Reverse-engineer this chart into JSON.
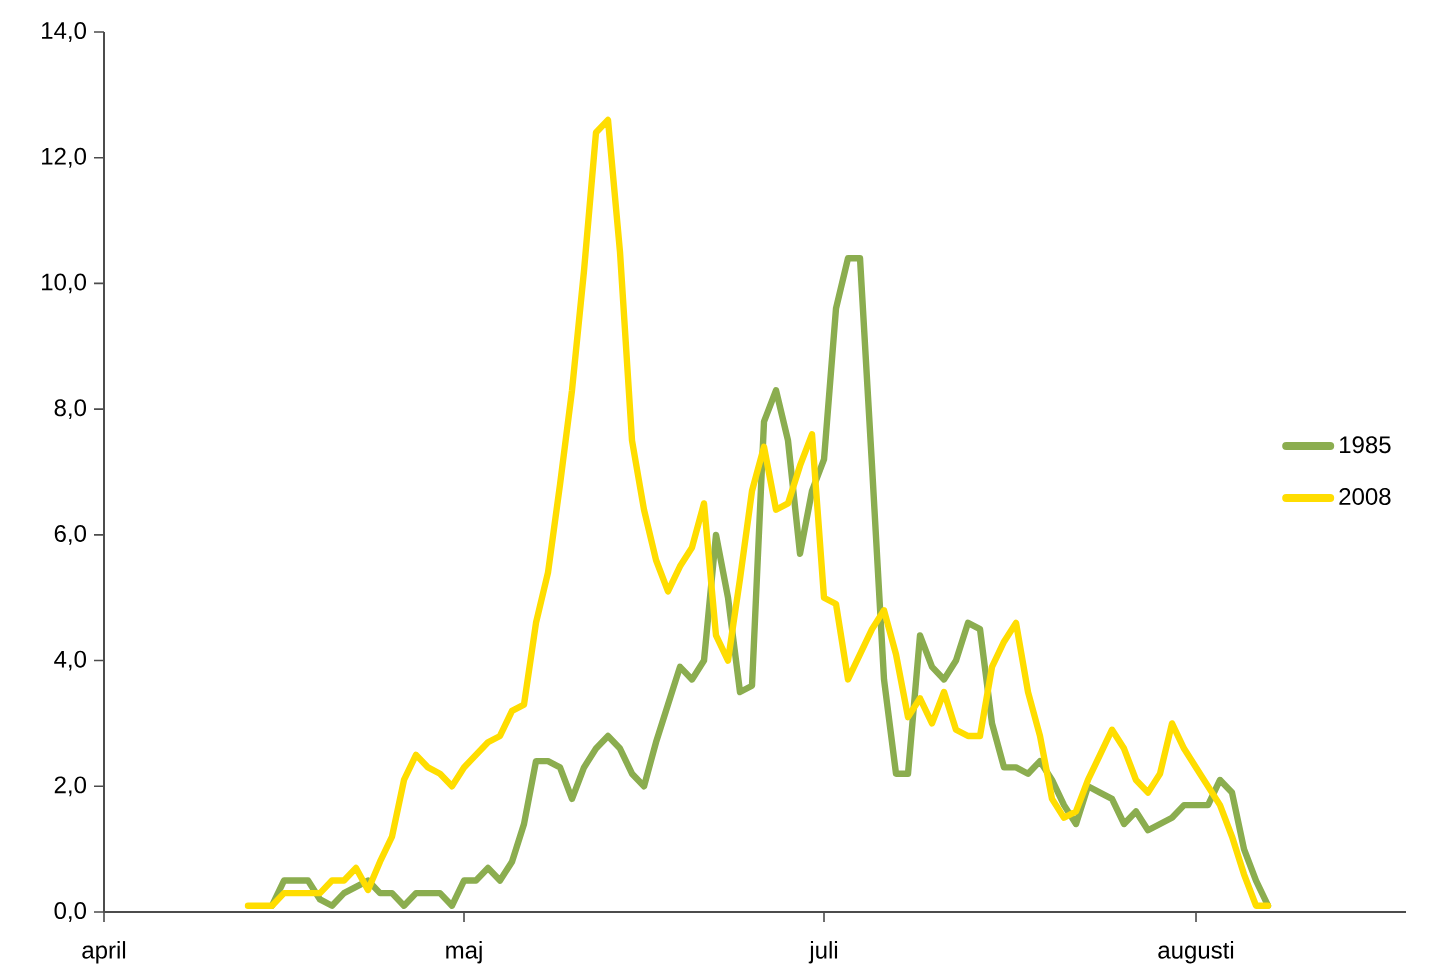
{
  "chart_data": {
    "type": "line",
    "categories": [
      "april",
      null,
      null,
      null,
      null,
      null,
      null,
      null,
      null,
      null,
      null,
      null,
      null,
      null,
      null,
      null,
      null,
      null,
      null,
      null,
      null,
      null,
      null,
      null,
      null,
      null,
      null,
      null,
      null,
      null,
      "maj",
      null,
      null,
      null,
      null,
      null,
      null,
      null,
      null,
      null,
      null,
      null,
      null,
      null,
      null,
      null,
      null,
      null,
      null,
      null,
      null,
      null,
      null,
      null,
      null,
      null,
      null,
      null,
      null,
      null,
      "juli",
      null,
      null,
      null,
      null,
      null,
      null,
      null,
      null,
      null,
      null,
      null,
      null,
      null,
      null,
      null,
      null,
      null,
      null,
      null,
      null,
      null,
      null,
      null,
      null,
      null,
      null,
      null,
      null,
      null,
      null,
      "augusti",
      null,
      null,
      null,
      null,
      null,
      null,
      null,
      null,
      null,
      null,
      null,
      null,
      null,
      null,
      null,
      null,
      null
    ],
    "ylim": [
      0,
      14
    ],
    "yticks": [
      {
        "value": 0,
        "label": "0,0"
      },
      {
        "value": 2,
        "label": "2,0"
      },
      {
        "value": 4,
        "label": "4,0"
      },
      {
        "value": 6,
        "label": "6,0"
      },
      {
        "value": 8,
        "label": "8,0"
      },
      {
        "value": 10,
        "label": "10,0"
      },
      {
        "value": 12,
        "label": "12,0"
      },
      {
        "value": 14,
        "label": "14,0"
      }
    ],
    "legend": "right",
    "marker": "none",
    "line_style": "solid",
    "series": [
      {
        "name": "1985",
        "color": "#8bad4f",
        "values": [
          null,
          null,
          null,
          null,
          null,
          null,
          null,
          null,
          null,
          null,
          null,
          null,
          null,
          null,
          0.1,
          0.5,
          0.5,
          0.5,
          0.2,
          0.1,
          0.3,
          0.4,
          0.5,
          0.3,
          0.3,
          0.1,
          0.3,
          0.3,
          0.3,
          0.1,
          0.5,
          0.5,
          0.7,
          0.5,
          0.8,
          1.4,
          2.4,
          2.4,
          2.3,
          1.8,
          2.3,
          2.6,
          2.8,
          2.6,
          2.2,
          2.0,
          2.7,
          3.3,
          3.9,
          3.7,
          4.0,
          6.0,
          5.0,
          3.5,
          3.6,
          7.8,
          8.3,
          7.5,
          5.7,
          6.7,
          7.2,
          9.6,
          10.4,
          10.4,
          7.1,
          3.7,
          2.2,
          2.2,
          4.4,
          3.9,
          3.7,
          4.0,
          4.6,
          4.5,
          3.0,
          2.3,
          2.3,
          2.2,
          2.4,
          2.1,
          1.7,
          1.4,
          2.0,
          1.9,
          1.8,
          1.4,
          1.6,
          1.3,
          1.4,
          1.5,
          1.7,
          1.7,
          1.7,
          2.1,
          1.9,
          1.0,
          0.5,
          0.1,
          null,
          null,
          null,
          null,
          null,
          null,
          null,
          null,
          null,
          null,
          null
        ]
      },
      {
        "name": "2008",
        "color": "#ffdd00",
        "values": [
          null,
          null,
          null,
          null,
          null,
          null,
          null,
          null,
          null,
          null,
          null,
          null,
          0.1,
          0.1,
          0.1,
          0.3,
          0.3,
          0.3,
          0.3,
          0.5,
          0.5,
          0.7,
          0.35,
          0.8,
          1.2,
          2.1,
          2.5,
          2.3,
          2.2,
          2.0,
          2.3,
          2.5,
          2.7,
          2.8,
          3.2,
          3.3,
          4.6,
          5.4,
          6.8,
          8.3,
          10.2,
          12.4,
          12.6,
          10.5,
          7.5,
          6.4,
          5.6,
          5.1,
          5.5,
          5.8,
          6.5,
          4.4,
          4.0,
          5.3,
          6.7,
          7.4,
          6.4,
          6.5,
          7.1,
          7.6,
          5.0,
          4.9,
          3.7,
          4.1,
          4.5,
          4.8,
          4.1,
          3.1,
          3.4,
          3.0,
          3.5,
          2.9,
          2.8,
          2.8,
          3.9,
          4.3,
          4.6,
          3.5,
          2.8,
          1.8,
          1.5,
          1.6,
          2.1,
          2.5,
          2.9,
          2.6,
          2.1,
          1.9,
          2.2,
          3.0,
          2.6,
          2.3,
          2.0,
          1.7,
          1.2,
          0.6,
          0.1,
          0.1,
          null,
          null,
          null,
          null,
          null,
          null,
          null,
          null,
          null,
          null,
          null
        ]
      }
    ]
  }
}
